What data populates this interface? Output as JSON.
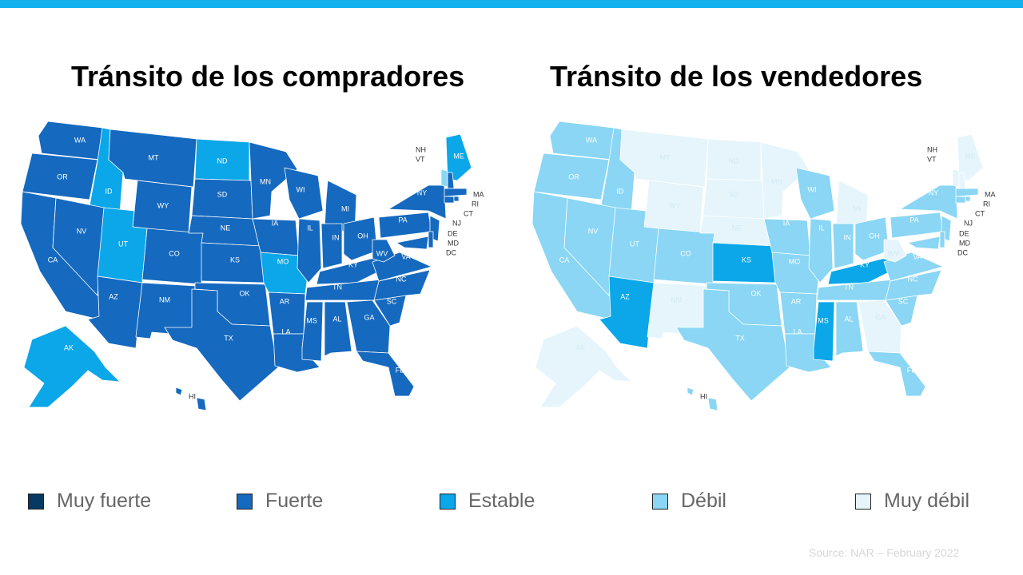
{
  "colors": {
    "muy_fuerte": "#063a62",
    "fuerte": "#1569bf",
    "estable": "#0ba7e8",
    "debil": "#8ad6f4",
    "muy_debil": "#e5f5fb",
    "top_bar": "#14b1ef"
  },
  "titles": {
    "buyers": "Tránsito de los compradores",
    "sellers": "Tránsito de los vendedores"
  },
  "legend": [
    {
      "category": "muy_fuerte",
      "label": "Muy fuerte"
    },
    {
      "category": "fuerte",
      "label": "Fuerte"
    },
    {
      "category": "estable",
      "label": "Estable"
    },
    {
      "category": "debil",
      "label": "Débil"
    },
    {
      "category": "muy_debil",
      "label": "Muy débil"
    }
  ],
  "source": "Source: NAR – February 2022",
  "maps": {
    "buyers": {
      "default": "fuerte",
      "states": {
        "ID": "estable",
        "UT": "estable",
        "ND": "estable",
        "MO": "estable",
        "AK": "estable",
        "ME": "estable",
        "VT": "debil"
      }
    },
    "sellers": {
      "default": "debil",
      "states": {
        "MT": "muy_debil",
        "ND": "muy_debil",
        "WY": "muy_debil",
        "SD": "muy_debil",
        "NE": "muy_debil",
        "MN": "muy_debil",
        "NM": "muy_debil",
        "MI": "muy_debil",
        "WV": "muy_debil",
        "GA": "muy_debil",
        "AK": "muy_debil",
        "ME": "muy_debil",
        "NH": "muy_debil",
        "VT": "muy_debil",
        "AZ": "estable",
        "KS": "estable",
        "KY": "estable",
        "MS": "estable"
      }
    }
  }
}
